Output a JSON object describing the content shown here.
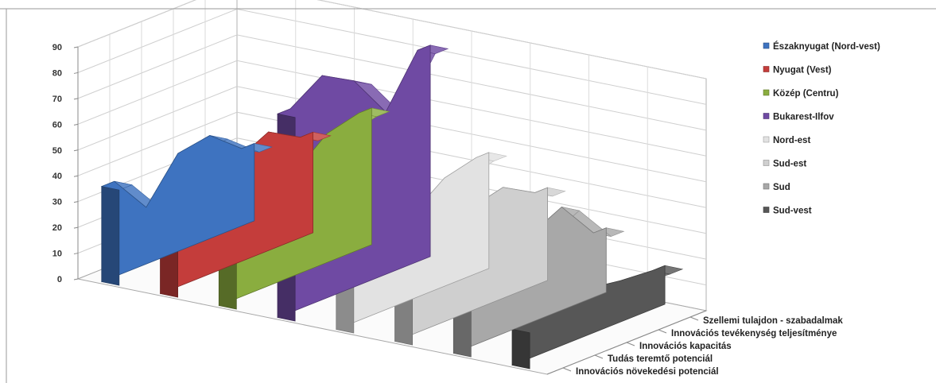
{
  "chart_data": {
    "type": "area",
    "subtype": "3d-area",
    "yticks": [
      "0",
      "10",
      "20",
      "30",
      "40",
      "50",
      "60",
      "70",
      "80",
      "90"
    ],
    "ylim": [
      0,
      90
    ],
    "categories": [
      "Innovációs növekedési potenciál",
      "Tudás teremtő potenciál",
      "Innovációs kapacitás",
      "Innovációs tevékenység teljesítménye",
      "Szellemi tulajdon - szabadalmak"
    ],
    "series": [
      {
        "name": "Északnyugat (Nord-vest)",
        "color": "#3e73c0",
        "values": [
          37,
          22,
          38,
          40,
          30
        ]
      },
      {
        "name": "Nyugat (Vest)",
        "color": "#c43d3b",
        "values": [
          33,
          21,
          40,
          46,
          39
        ]
      },
      {
        "name": "Közép (Centru)",
        "color": "#8aad3f",
        "values": [
          43,
          26,
          40,
          50,
          53
        ]
      },
      {
        "name": "Bukarest-Ilfov",
        "color": "#6f4aa3",
        "values": [
          79,
          87,
          80,
          63,
          82
        ]
      },
      {
        "name": "Nord-est",
        "color": "#e2e2e2",
        "values": [
          34,
          52,
          33,
          42,
          45
        ]
      },
      {
        "name": "Sud-est",
        "color": "#cfcfcf",
        "values": [
          46,
          54,
          40,
          43,
          36
        ]
      },
      {
        "name": "Sud",
        "color": "#a8a8a8",
        "values": [
          42,
          30,
          34,
          40,
          25
        ]
      },
      {
        "name": "Sud-vest",
        "color": "#575757",
        "values": [
          14,
          20,
          18,
          16,
          15
        ]
      }
    ],
    "legend_position": "right",
    "grid": true
  }
}
